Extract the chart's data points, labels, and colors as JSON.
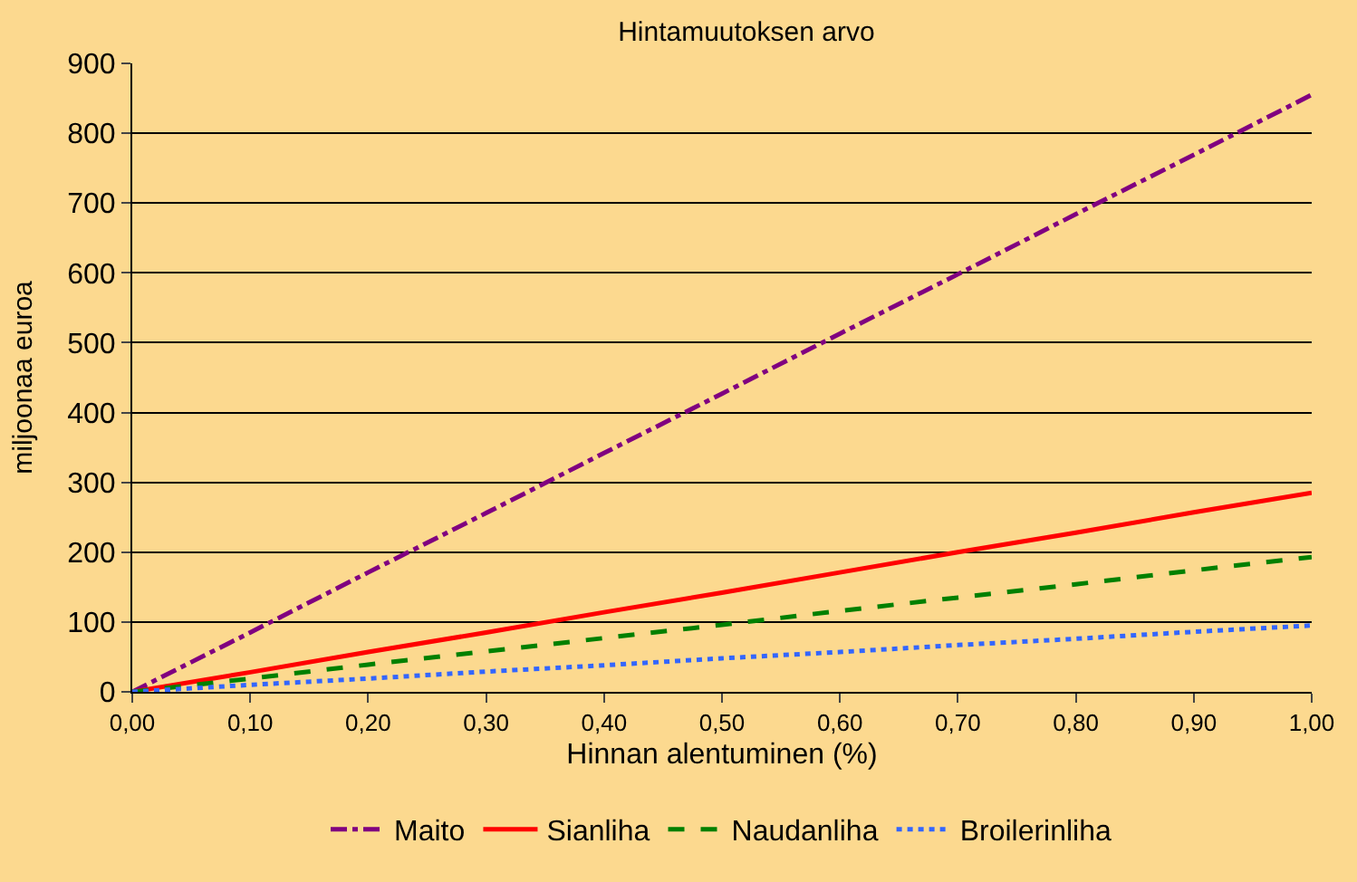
{
  "chart_data": {
    "type": "line",
    "title": "Hintamuutoksen arvo",
    "xlabel": "Hinnan alentuminen (%)",
    "ylabel": "miljoonaa euroa",
    "x": [
      0,
      0.1,
      0.2,
      0.3,
      0.4,
      0.5,
      0.6,
      0.7,
      0.8,
      0.9,
      1.0
    ],
    "series": [
      {
        "name": "Maito",
        "color": "#800080",
        "line_style": "dashdot",
        "values": [
          0,
          85,
          171,
          256,
          342,
          427,
          513,
          598,
          684,
          769,
          855
        ]
      },
      {
        "name": "Sianliha",
        "color": "#ff0000",
        "line_style": "solid",
        "values": [
          0,
          28,
          57,
          85,
          114,
          142,
          171,
          200,
          228,
          257,
          285
        ]
      },
      {
        "name": "Naudanliha",
        "color": "#008000",
        "line_style": "dashed",
        "values": [
          0,
          19,
          39,
          58,
          77,
          96,
          116,
          135,
          154,
          174,
          193
        ]
      },
      {
        "name": "Broilerinliha",
        "color": "#3366ff",
        "line_style": "dotted",
        "values": [
          0,
          10,
          19,
          29,
          38,
          48,
          57,
          67,
          76,
          86,
          95
        ]
      }
    ],
    "xlim": [
      0,
      1
    ],
    "ylim": [
      0,
      900
    ],
    "xticks": [
      {
        "value": 0,
        "label": "0,00"
      },
      {
        "value": 0.1,
        "label": "0,10"
      },
      {
        "value": 0.2,
        "label": "0,20"
      },
      {
        "value": 0.3,
        "label": "0,30"
      },
      {
        "value": 0.4,
        "label": "0,40"
      },
      {
        "value": 0.5,
        "label": "0,50"
      },
      {
        "value": 0.6,
        "label": "0,60"
      },
      {
        "value": 0.7,
        "label": "0,70"
      },
      {
        "value": 0.8,
        "label": "0,80"
      },
      {
        "value": 0.9,
        "label": "0,90"
      },
      {
        "value": 1.0,
        "label": "1,00"
      }
    ],
    "yticks": [
      0,
      100,
      200,
      300,
      400,
      500,
      600,
      700,
      800,
      900
    ],
    "grid": "y",
    "legend": "bottom",
    "marker": "none"
  }
}
